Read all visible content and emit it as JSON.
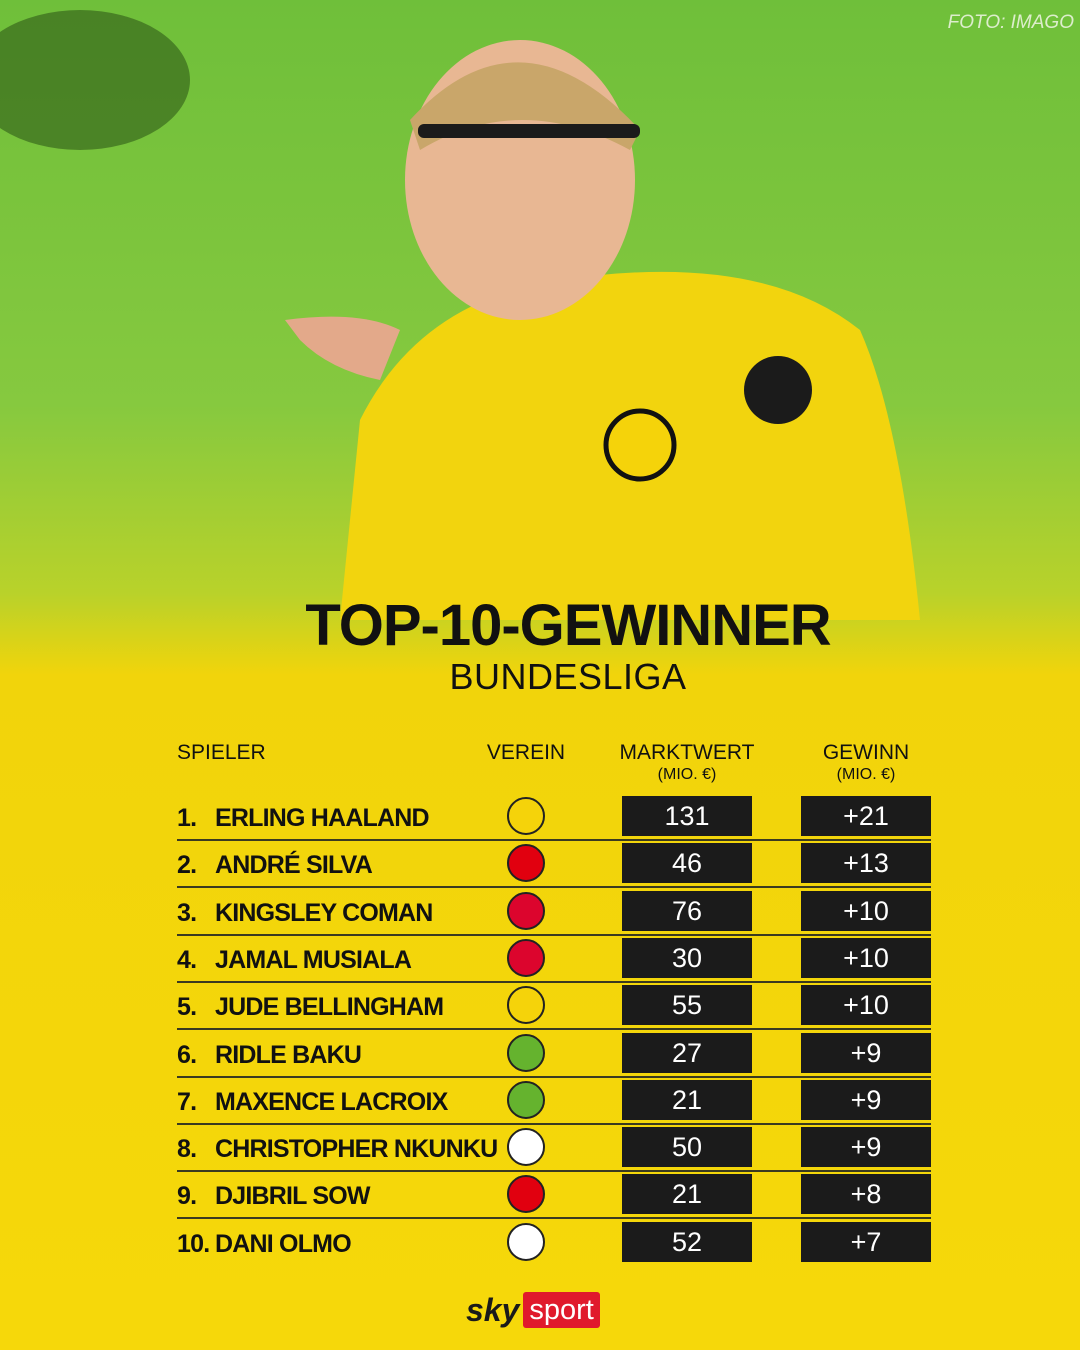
{
  "credit": "FOTO: IMAGO",
  "header": {
    "title": "TOP-10-GEWINNER",
    "subtitle": "BUNDESLIGA"
  },
  "table": {
    "columns": [
      {
        "label": "SPIELER"
      },
      {
        "label": "VEREIN"
      },
      {
        "label": "MARKTWERT",
        "unit": "(MIO. €)"
      },
      {
        "label": "GEWINN",
        "unit": "(MIO. €)"
      }
    ],
    "rows": [
      [
        "1.",
        "ERLING HAALAND",
        "131",
        "+21"
      ],
      [
        "2.",
        "ANDRÉ SILVA",
        "46",
        "+13"
      ],
      [
        "3.",
        "KINGSLEY COMAN",
        "76",
        "+10"
      ],
      [
        "4.",
        "JAMAL MUSIALA",
        "30",
        "+10"
      ],
      [
        "5.",
        "JUDE BELLINGHAM",
        "55",
        "+10"
      ],
      [
        "6.",
        "RIDLE BAKU",
        "27",
        "+9"
      ],
      [
        "7.",
        "MAXENCE LACROIX",
        "21",
        "+9"
      ],
      [
        "8.",
        "CHRISTOPHER NKUNKU",
        "50",
        "+9"
      ],
      [
        "9.",
        "DJIBRIL SOW",
        "21",
        "+8"
      ],
      [
        "10.",
        "DANI OLMO",
        "52",
        "+7"
      ]
    ]
  },
  "logo": {
    "brand": "sky",
    "product": "sport"
  }
}
